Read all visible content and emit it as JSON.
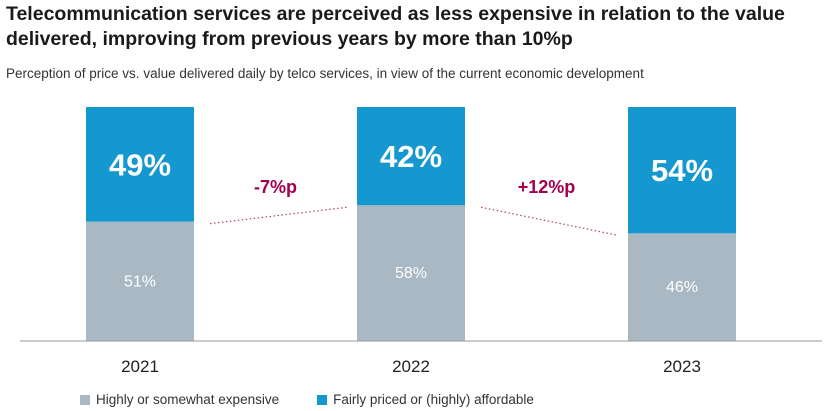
{
  "title": "Telecommunication services are perceived as less expensive in relation to the value delivered, improving from previous years by more than 10%p",
  "subtitle": "Perception of price vs. value delivered daily by telco services, in view of the current economic development",
  "colors": {
    "expensive": "#a9b8c3",
    "affordable": "#1597cf",
    "change": "#a3004f",
    "connector": "#b0416f",
    "axis": "#999999",
    "label_light": "#ffffff"
  },
  "chart_data": {
    "type": "bar",
    "stacked": true,
    "categories": [
      "2021",
      "2022",
      "2023"
    ],
    "series": [
      {
        "name": "Highly or somewhat expensive",
        "values": [
          51,
          58,
          46
        ],
        "labels": [
          "51%",
          "58%",
          "46%"
        ]
      },
      {
        "name": "Fairly priced or (highly) affordable",
        "values": [
          49,
          42,
          54
        ],
        "labels": [
          "49%",
          "42%",
          "54%"
        ]
      }
    ],
    "ylim": [
      0,
      100
    ],
    "changes": [
      {
        "label": "-7%p"
      },
      {
        "label": "+12%p"
      }
    ],
    "legend_position": "bottom-left",
    "grid": false
  }
}
